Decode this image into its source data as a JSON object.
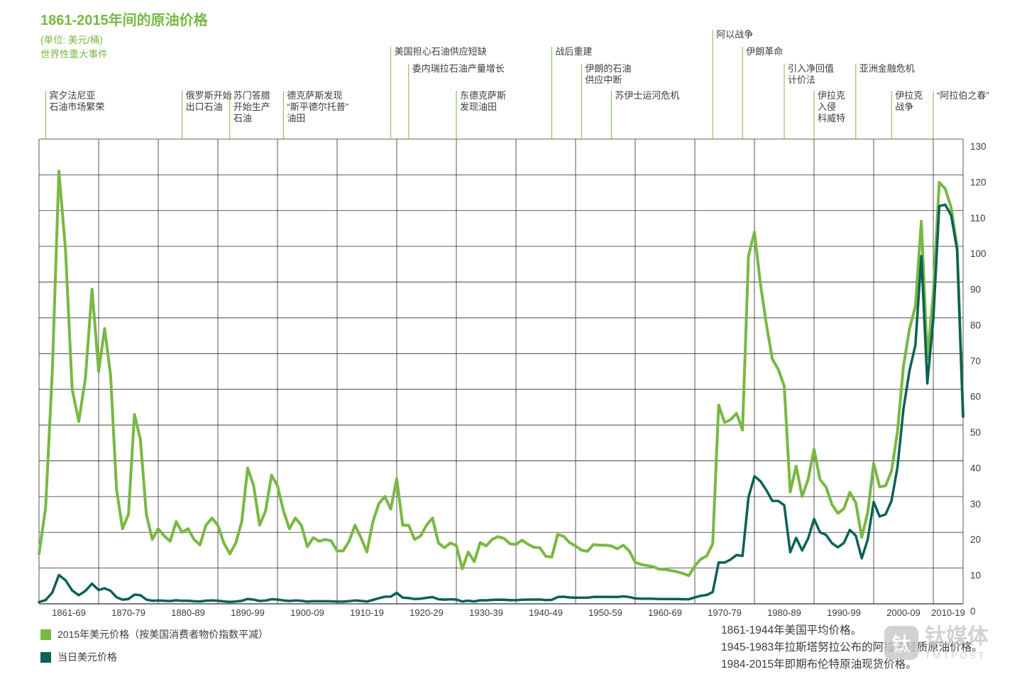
{
  "header": {
    "title": "1861-2015年间的原油价格",
    "unit": "(单位: 美元/桶)",
    "events_caption": "世界性重大事件"
  },
  "legend": [
    {
      "label": "2015年美元价格（按美国消费者物价指数平减）",
      "color": "#79b843"
    },
    {
      "label": "当日美元价格",
      "color": "#0b6156"
    }
  ],
  "notes": [
    "1861-1944年美国平均价格。",
    "1945-1983年拉斯塔努拉公布的阿拉伯轻质原油价格。",
    "1984-2015年即期布伦特原油现货价格。"
  ],
  "watermark": {
    "name": "钛媒体",
    "sub": "TMTPOST",
    "logo_glyph": "钛"
  },
  "chart_data": {
    "type": "line",
    "title": "1861-2015年间的原油价格",
    "unit": "美元/桶",
    "x_start": 1861,
    "x_end": 2015,
    "ylim": [
      0,
      130
    ],
    "grid": true,
    "legend_position": "bottom-left",
    "grid_color": "#2d2d2d",
    "text_color": "#3c3c3b",
    "event_line_color": "#79b843",
    "y_ticks": [
      0,
      10,
      20,
      30,
      40,
      50,
      60,
      70,
      80,
      90,
      100,
      110,
      120,
      130
    ],
    "x_labels": [
      "1861-69",
      "1870-79",
      "1880-89",
      "1890-99",
      "1900-09",
      "1910-19",
      "1920-29",
      "1930-39",
      "1940-49",
      "1950-59",
      "1960-69",
      "1970-79",
      "1980-89",
      "1990-99",
      "2000-09",
      "2010-19"
    ],
    "events": [
      {
        "year": 1862,
        "row": 3,
        "lines": [
          "宾夕法尼亚",
          "石油市场繁荣"
        ]
      },
      {
        "year": 1884,
        "row": 3,
        "lines": [
          "俄罗斯开始",
          "出口石油"
        ]
      },
      {
        "year": 1892,
        "row": 3,
        "lines": [
          "苏门答腊",
          "开始生产",
          "石油"
        ]
      },
      {
        "year": 1901,
        "row": 3,
        "lines": [
          "德克萨斯发现",
          "“斯平德尔托普”",
          "油田"
        ]
      },
      {
        "year": 1919,
        "row": 1,
        "lines": [
          "美国担心石油供应短缺"
        ]
      },
      {
        "year": 1922,
        "row": 2,
        "lines": [
          "委内瑞拉石油产量增长"
        ]
      },
      {
        "year": 1930,
        "row": 3,
        "lines": [
          "东德克萨斯",
          "发现油田"
        ]
      },
      {
        "year": 1946,
        "row": 1,
        "lines": [
          "战后重建"
        ]
      },
      {
        "year": 1951,
        "row": 2,
        "lines": [
          "伊朗的石油",
          "供应中断"
        ]
      },
      {
        "year": 1956,
        "row": 3,
        "lines": [
          "苏伊士运河危机"
        ]
      },
      {
        "year": 1973,
        "row": 0,
        "lines": [
          "阿以战争"
        ]
      },
      {
        "year": 1978,
        "row": 1,
        "lines": [
          "伊朗革命"
        ]
      },
      {
        "year": 1985,
        "row": 2,
        "lines": [
          "引入净回值",
          "计价法"
        ]
      },
      {
        "year": 1990,
        "row": 3,
        "lines": [
          "伊拉克",
          "入侵",
          "科威特"
        ]
      },
      {
        "year": 1997,
        "row": 2,
        "lines": [
          "亚洲金融危机"
        ]
      },
      {
        "year": 2003,
        "row": 3,
        "lines": [
          "伊拉克",
          "战争"
        ]
      },
      {
        "year": 2010,
        "row": 3,
        "lines": [
          "“阿拉伯之春”"
        ]
      }
    ],
    "series": [
      {
        "name": "2015年美元价格（按美国消费者物价指数平减）",
        "color": "#79b843",
        "values": [
          14,
          27,
          65,
          121,
          99,
          60,
          51,
          63,
          88,
          65,
          77,
          64,
          32,
          21,
          25,
          53,
          46,
          25,
          18,
          21,
          19,
          17.5,
          23,
          20,
          21,
          18,
          16.5,
          22,
          24,
          22,
          17,
          14,
          17,
          23,
          38,
          33,
          22,
          26,
          36,
          33,
          26,
          21,
          24,
          22,
          16,
          18.5,
          17.5,
          18,
          17.6,
          14.8,
          14.8,
          17.5,
          22,
          18.5,
          14.5,
          23,
          28,
          30,
          26.5,
          35,
          22,
          22,
          18,
          19,
          22,
          24,
          17,
          15.7,
          17,
          16.3,
          9.8,
          14.5,
          11.8,
          17.1,
          16.2,
          18,
          18.8,
          18.3,
          16.8,
          16.6,
          17.8,
          16.7,
          15.8,
          15.7,
          13.3,
          13.1,
          19.4,
          18.9,
          17.1,
          16.2,
          15,
          14.7,
          16.6,
          16.4,
          16.4,
          16.2,
          15.4,
          16.4,
          14.8,
          11.6,
          11,
          10.7,
          10.4,
          9.7,
          9.6,
          9.3,
          9,
          8.5,
          7.9,
          10.6,
          12.5,
          13.4,
          16.8,
          55.6,
          50.7,
          51.5,
          53.3,
          48.6,
          97.3,
          104,
          89.6,
          78.2,
          68.5,
          65.6,
          60.9,
          31.3,
          38.5,
          30,
          34.8,
          43.2,
          34.8,
          32.7,
          27.8,
          25.3,
          26.6,
          31.2,
          28.3,
          18.6,
          25.5,
          39.3,
          32.7,
          33,
          37.2,
          48.2,
          66.5,
          76.9,
          83.2,
          107,
          68.5,
          86.7,
          117.9,
          116.1,
          110.8,
          99.9,
          52.4
        ]
      },
      {
        "name": "当日美元价格",
        "color": "#0b6156",
        "values": [
          0.49,
          1.05,
          3.15,
          8.06,
          6.59,
          3.74,
          2.41,
          3.62,
          5.64,
          3.86,
          4.34,
          3.64,
          1.83,
          1.17,
          1.35,
          2.56,
          2.42,
          1.19,
          0.86,
          0.95,
          0.86,
          0.78,
          1.0,
          0.84,
          0.88,
          0.71,
          0.67,
          0.88,
          0.94,
          0.87,
          0.67,
          0.56,
          0.64,
          0.84,
          1.36,
          1.18,
          0.79,
          0.91,
          1.29,
          1.19,
          0.96,
          0.8,
          0.94,
          0.86,
          0.62,
          0.73,
          0.72,
          0.72,
          0.7,
          0.61,
          0.61,
          0.74,
          0.95,
          0.81,
          0.64,
          1.1,
          1.56,
          1.98,
          2.01,
          3.07,
          1.73,
          1.61,
          1.34,
          1.43,
          1.68,
          1.88,
          1.3,
          1.17,
          1.27,
          1.19,
          0.65,
          0.87,
          0.67,
          1.0,
          0.97,
          1.09,
          1.18,
          1.13,
          1.02,
          1.02,
          1.14,
          1.19,
          1.2,
          1.21,
          1.05,
          1.12,
          1.9,
          1.99,
          1.78,
          1.71,
          1.71,
          1.71,
          1.93,
          1.93,
          1.93,
          1.93,
          1.9,
          2.08,
          1.9,
          1.5,
          1.45,
          1.42,
          1.4,
          1.33,
          1.33,
          1.33,
          1.33,
          1.3,
          1.28,
          1.8,
          2.24,
          2.48,
          3.29,
          11.58,
          11.53,
          12.38,
          13.66,
          13.39,
          29.75,
          35.69,
          34.32,
          31.8,
          28.78,
          28.78,
          27.56,
          14.43,
          18.44,
          14.92,
          18.23,
          23.73,
          20.0,
          19.32,
          16.97,
          15.82,
          17.02,
          20.67,
          19.09,
          12.72,
          17.97,
          28.5,
          24.44,
          25.02,
          28.83,
          38.27,
          54.52,
          65.14,
          72.39,
          97.26,
          61.67,
          79.5,
          111.26,
          111.67,
          108.66,
          98.95,
          52.39
        ]
      }
    ]
  }
}
